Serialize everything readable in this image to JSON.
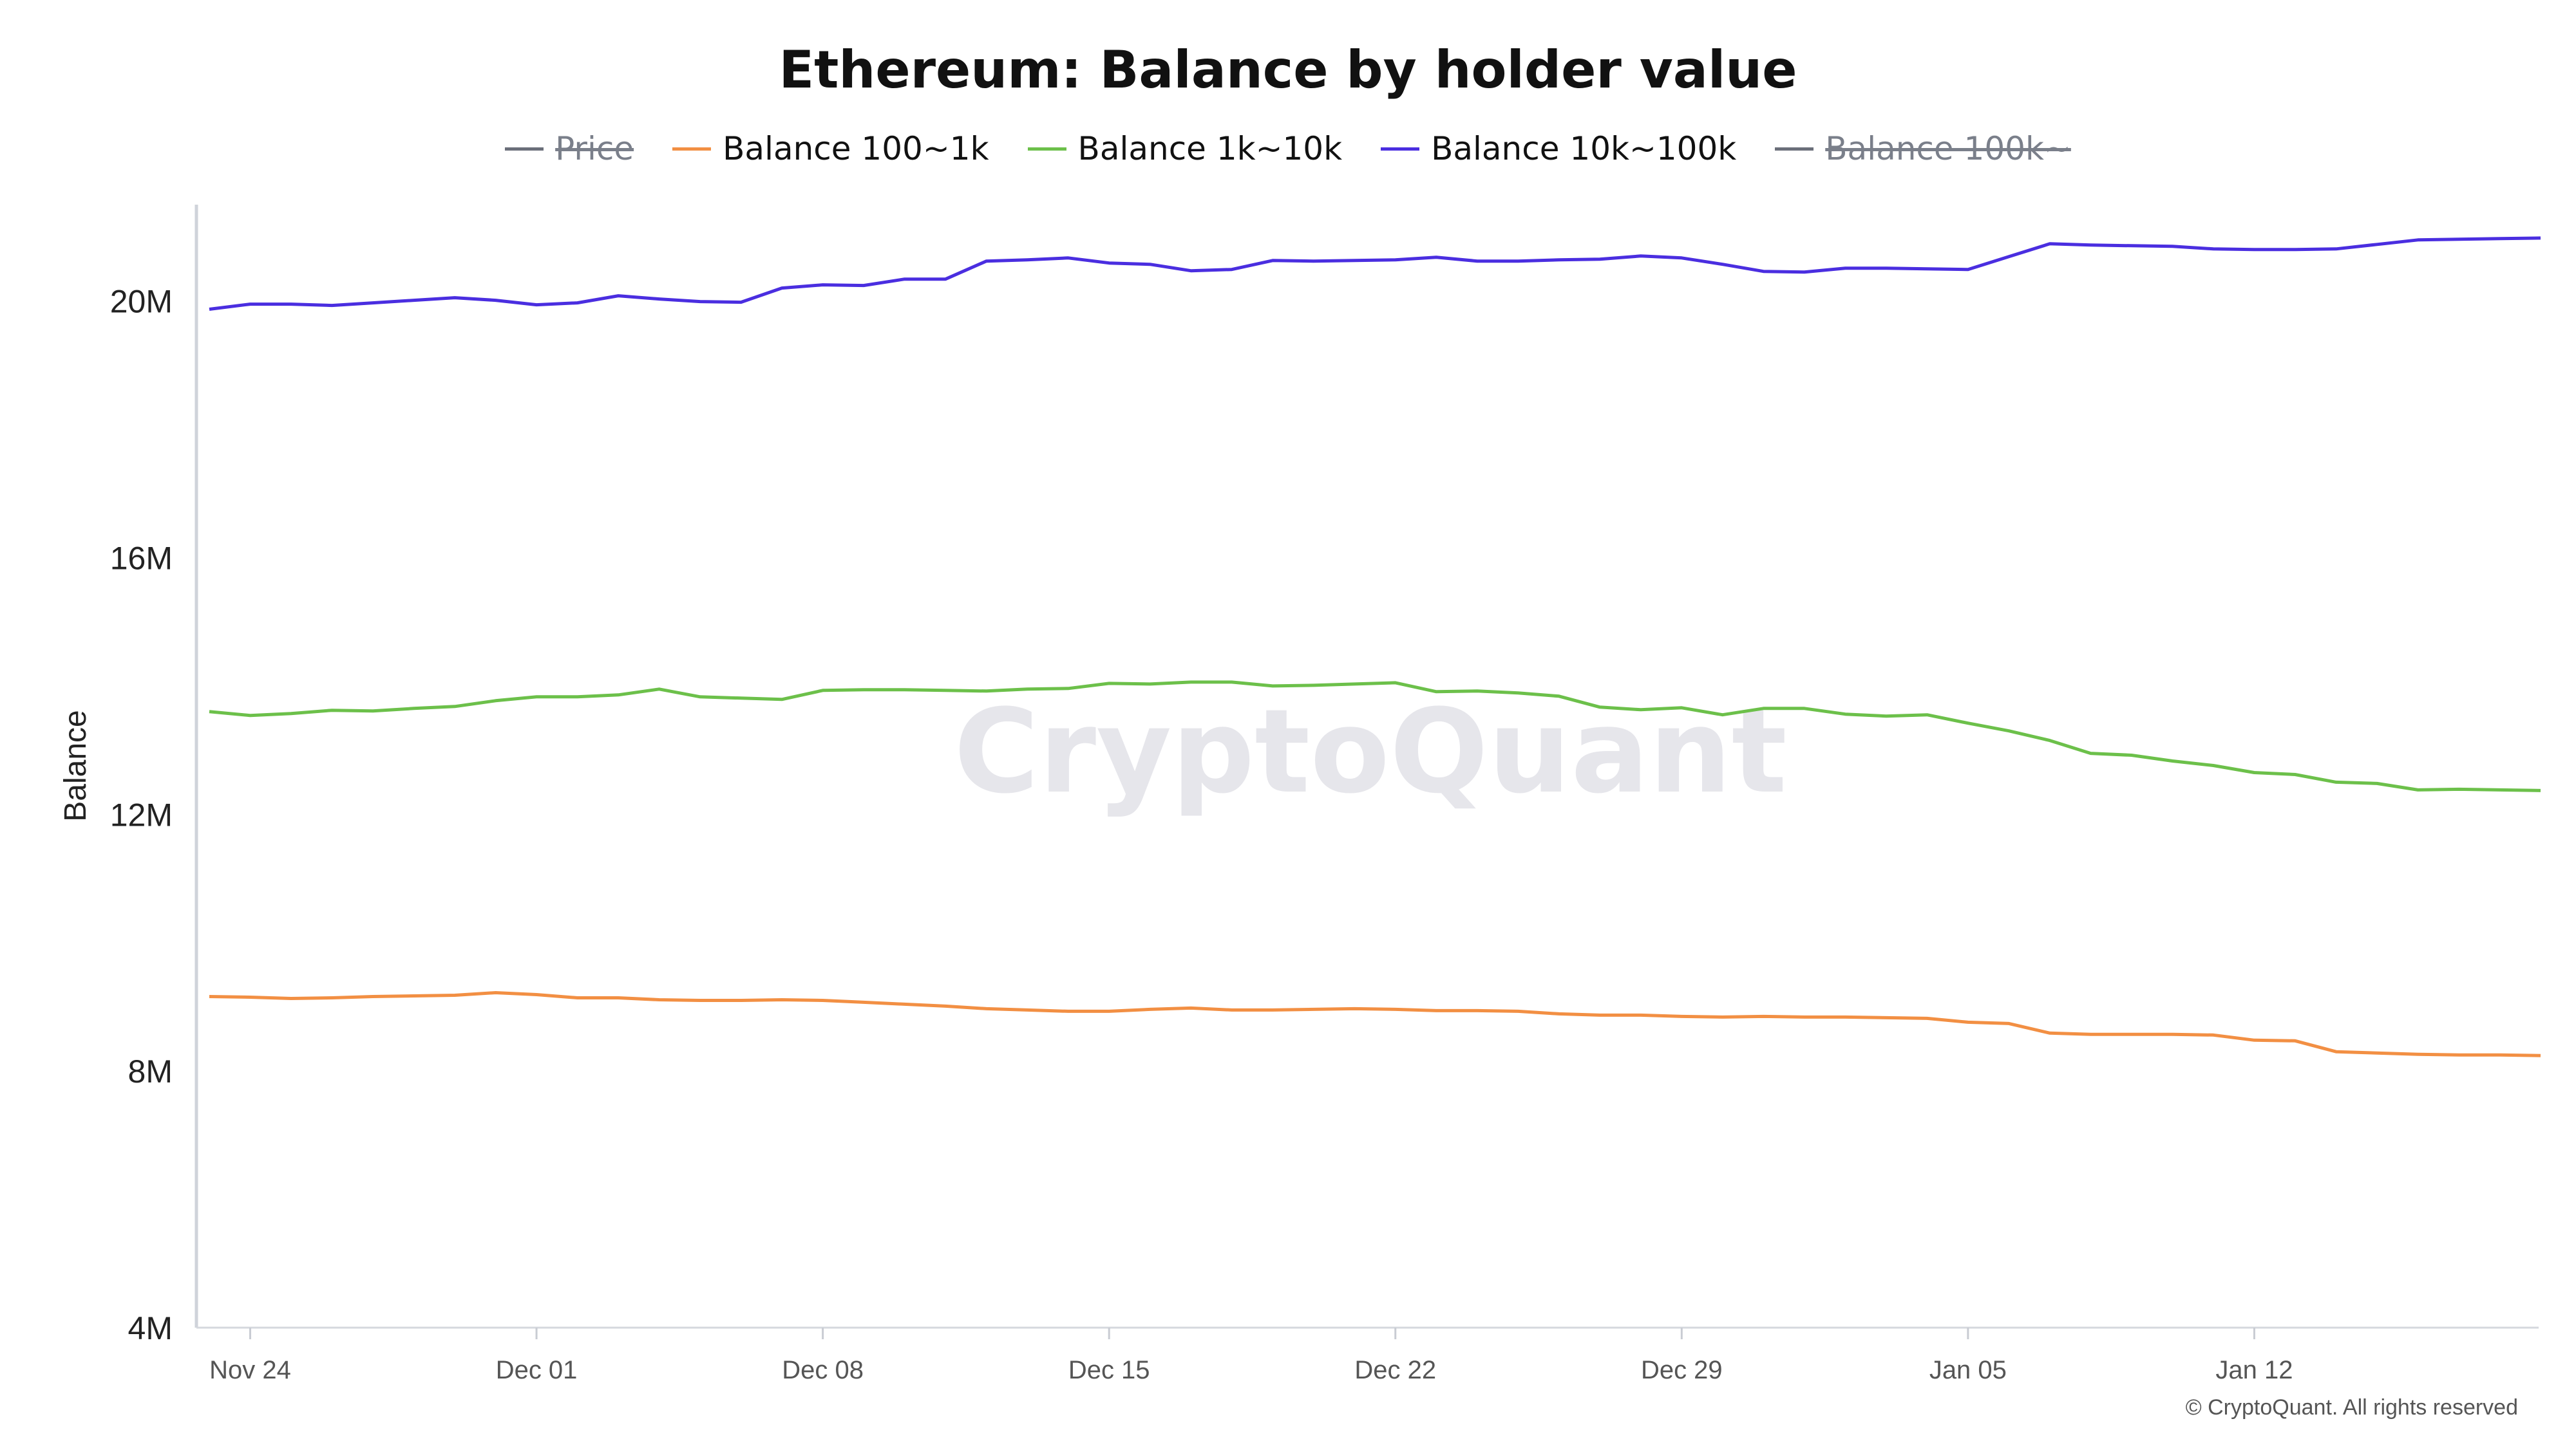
{
  "title": "Ethereum: Balance by holder value",
  "watermark": "CryptoQuant",
  "copyright": "© CryptoQuant. All rights reserved",
  "legend": [
    {
      "label": "Price",
      "color": "#6b6f7a",
      "hidden": true
    },
    {
      "label": "Balance 100~1k",
      "color": "#f28f43",
      "hidden": false
    },
    {
      "label": "Balance 1k~10k",
      "color": "#6cc04a",
      "hidden": false
    },
    {
      "label": "Balance 10k~100k",
      "color": "#4a2ee0",
      "hidden": false
    },
    {
      "label": "Balance 100k~",
      "color": "#6b6f7a",
      "hidden": true
    }
  ],
  "chart_data": {
    "type": "line",
    "title": "Ethereum: Balance by holder value",
    "xlabel": "",
    "ylabel": "Balance",
    "ylim": [
      4000000,
      21500000
    ],
    "yticks": [
      {
        "value": 4000000,
        "label": "4M"
      },
      {
        "value": 8000000,
        "label": "8M"
      },
      {
        "value": 12000000,
        "label": "12M"
      },
      {
        "value": 16000000,
        "label": "16M"
      },
      {
        "value": 20000000,
        "label": "20M"
      }
    ],
    "xticks": [
      {
        "date": "2024-11-24",
        "label": "Nov 24"
      },
      {
        "date": "2024-12-01",
        "label": "Dec 01"
      },
      {
        "date": "2024-12-08",
        "label": "Dec 08"
      },
      {
        "date": "2024-12-15",
        "label": "Dec 15"
      },
      {
        "date": "2024-12-22",
        "label": "Dec 22"
      },
      {
        "date": "2024-12-29",
        "label": "Dec 29"
      },
      {
        "date": "2025-01-05",
        "label": "Jan 05"
      },
      {
        "date": "2025-01-12",
        "label": "Jan 12"
      }
    ],
    "x": [
      "2024-11-23",
      "2024-11-24",
      "2024-11-25",
      "2024-11-26",
      "2024-11-27",
      "2024-11-28",
      "2024-11-29",
      "2024-11-30",
      "2024-12-01",
      "2024-12-02",
      "2024-12-03",
      "2024-12-04",
      "2024-12-05",
      "2024-12-06",
      "2024-12-07",
      "2024-12-08",
      "2024-12-09",
      "2024-12-10",
      "2024-12-11",
      "2024-12-12",
      "2024-12-13",
      "2024-12-14",
      "2024-12-15",
      "2024-12-16",
      "2024-12-17",
      "2024-12-18",
      "2024-12-19",
      "2024-12-20",
      "2024-12-21",
      "2024-12-22",
      "2024-12-23",
      "2024-12-24",
      "2024-12-25",
      "2024-12-26",
      "2024-12-27",
      "2024-12-28",
      "2024-12-29",
      "2024-12-30",
      "2024-12-31",
      "2025-01-01",
      "2025-01-02",
      "2025-01-03",
      "2025-01-04",
      "2025-01-05",
      "2025-01-06",
      "2025-01-07",
      "2025-01-08",
      "2025-01-09",
      "2025-01-10",
      "2025-01-11",
      "2025-01-12",
      "2025-01-13",
      "2025-01-14",
      "2025-01-15",
      "2025-01-16",
      "2025-01-17",
      "2025-01-18",
      "2025-01-19"
    ],
    "series": [
      {
        "name": "Balance 100~1k",
        "color": "#f28f43",
        "values": [
          9160000,
          9150000,
          9130000,
          9140000,
          9160000,
          9170000,
          9180000,
          9220000,
          9190000,
          9140000,
          9140000,
          9110000,
          9100000,
          9100000,
          9110000,
          9100000,
          9070000,
          9040000,
          9010000,
          8970000,
          8950000,
          8930000,
          8930000,
          8960000,
          8980000,
          8950000,
          8950000,
          8960000,
          8970000,
          8960000,
          8940000,
          8940000,
          8930000,
          8890000,
          8870000,
          8870000,
          8850000,
          8840000,
          8850000,
          8840000,
          8840000,
          8830000,
          8820000,
          8760000,
          8740000,
          8590000,
          8570000,
          8570000,
          8570000,
          8560000,
          8480000,
          8470000,
          8300000,
          8280000,
          8260000,
          8250000,
          8250000,
          8240000
        ]
      },
      {
        "name": "Balance 1k~10k",
        "color": "#6cc04a",
        "values": [
          13600000,
          13540000,
          13570000,
          13620000,
          13610000,
          13650000,
          13680000,
          13770000,
          13830000,
          13830000,
          13860000,
          13950000,
          13830000,
          13810000,
          13790000,
          13930000,
          13940000,
          13940000,
          13930000,
          13920000,
          13950000,
          13960000,
          14040000,
          14030000,
          14060000,
          14060000,
          14000000,
          14010000,
          14030000,
          14050000,
          13910000,
          13920000,
          13890000,
          13840000,
          13670000,
          13630000,
          13660000,
          13550000,
          13650000,
          13650000,
          13560000,
          13530000,
          13550000,
          13420000,
          13300000,
          13150000,
          12950000,
          12920000,
          12830000,
          12760000,
          12650000,
          12620000,
          12500000,
          12480000,
          12380000,
          12390000,
          12380000,
          12370000
        ]
      },
      {
        "name": "Balance 10k~100k",
        "color": "#4a2ee0",
        "values": [
          19870000,
          19950000,
          19950000,
          19930000,
          19970000,
          20010000,
          20050000,
          20010000,
          19940000,
          19970000,
          20080000,
          20030000,
          19990000,
          19980000,
          20200000,
          20250000,
          20240000,
          20340000,
          20340000,
          20620000,
          20640000,
          20670000,
          20590000,
          20570000,
          20470000,
          20490000,
          20630000,
          20620000,
          20630000,
          20640000,
          20680000,
          20620000,
          20620000,
          20640000,
          20650000,
          20700000,
          20670000,
          20570000,
          20460000,
          20450000,
          20510000,
          20510000,
          20500000,
          20490000,
          20690000,
          20890000,
          20870000,
          20860000,
          20850000,
          20810000,
          20800000,
          20800000,
          20810000,
          20880000,
          20950000,
          20960000,
          20970000,
          20980000
        ]
      }
    ],
    "grid": false,
    "legend_position": "top-center"
  }
}
